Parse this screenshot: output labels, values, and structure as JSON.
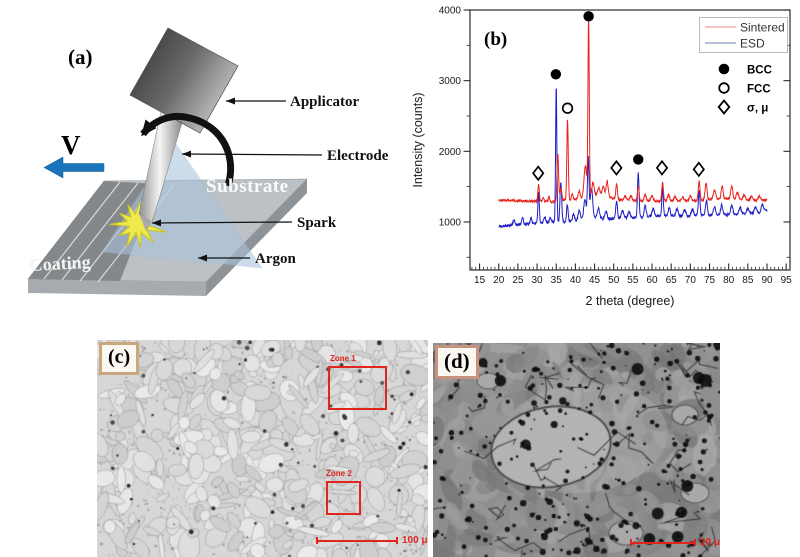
{
  "figure": {
    "panels": {
      "a": {
        "label": "(a)",
        "velocity_label": "V",
        "callouts": {
          "applicator": "Applicator",
          "electrode": "Electrode",
          "spark": "Spark",
          "argon": "Argon"
        },
        "surface_labels": {
          "substrate": "Substrate",
          "coating": "Coating"
        },
        "colors": {
          "velocity_arrow": "#1b75bc",
          "spark": "#efe94b",
          "argon_cone": "#aac4dd",
          "plate_top": "#bcc1c5",
          "coating_band": "#84888b"
        }
      },
      "b": {
        "label": "(b)"
      },
      "c": {
        "label": "(c)",
        "zone1_label": "Zone 1",
        "zone2_label": "Zone 2",
        "scalebar_text": "100 μm",
        "overlay_color": "#e0251f"
      },
      "d": {
        "label": "(d)",
        "scalebar_text": "20 μm",
        "overlay_color": "#e0251f"
      }
    }
  },
  "chart_data": {
    "type": "line",
    "title": "",
    "xlabel": "2 theta (degree)",
    "ylabel": "Intensity (counts)",
    "xlim": [
      12.5,
      96
    ],
    "ylim": [
      320,
      4000
    ],
    "x_major_ticks": [
      15,
      20,
      25,
      30,
      35,
      40,
      45,
      50,
      55,
      60,
      65,
      70,
      75,
      80,
      85,
      90,
      95
    ],
    "x_minor_step": 1,
    "y_major_ticks": [
      1000,
      2000,
      3000,
      4000
    ],
    "y_minor_step": 500,
    "grid": false,
    "legend_position": "top-right",
    "legend": [
      {
        "label": "Sintered",
        "line_color": "#f0b2ad",
        "series_color": "#e8231c"
      },
      {
        "label": "ESD",
        "line_color": "#9fadcb",
        "series_color": "#1e1ec8"
      }
    ],
    "phase_legend": [
      {
        "symbol": "filled-circle",
        "label": "BCC"
      },
      {
        "symbol": "open-circle",
        "label": "FCC"
      },
      {
        "symbol": "diamond",
        "label": "σ, μ"
      }
    ],
    "phase_markers": [
      {
        "symbol": "filled-circle",
        "x": 34.9,
        "y": 3090
      },
      {
        "symbol": "filled-circle",
        "x": 43.45,
        "y": 3910
      },
      {
        "symbol": "filled-circle",
        "x": 56.4,
        "y": 1885
      },
      {
        "symbol": "open-circle",
        "x": 37.95,
        "y": 2610
      },
      {
        "symbol": "diamond",
        "x": 30.3,
        "y": 1690
      },
      {
        "symbol": "diamond",
        "x": 50.7,
        "y": 1765
      },
      {
        "symbol": "diamond",
        "x": 62.6,
        "y": 1765
      },
      {
        "symbol": "diamond",
        "x": 72.2,
        "y": 1745
      }
    ],
    "series": [
      {
        "name": "Sintered",
        "color": "#e8231c",
        "noise": 16,
        "baseline": [
          [
            20,
            1310
          ],
          [
            28,
            1295
          ],
          [
            34,
            1285
          ],
          [
            40,
            1320
          ],
          [
            43,
            1335
          ],
          [
            44,
            1370
          ],
          [
            47,
            1380
          ],
          [
            49,
            1340
          ],
          [
            52,
            1310
          ],
          [
            56,
            1300
          ],
          [
            60,
            1295
          ],
          [
            64,
            1300
          ],
          [
            68,
            1295
          ],
          [
            72,
            1305
          ],
          [
            76,
            1320
          ],
          [
            80,
            1330
          ],
          [
            84,
            1310
          ],
          [
            88,
            1300
          ],
          [
            90,
            1310
          ]
        ],
        "peaks": [
          [
            30.4,
            250,
            0.18
          ],
          [
            31.6,
            60,
            0.2
          ],
          [
            33.1,
            70,
            0.18
          ],
          [
            35.4,
            690,
            0.2
          ],
          [
            36.2,
            180,
            0.25
          ],
          [
            37.95,
            1150,
            0.18
          ],
          [
            39.2,
            90,
            0.2
          ],
          [
            41.0,
            110,
            0.25
          ],
          [
            42.6,
            470,
            0.35
          ],
          [
            43.45,
            2540,
            0.17
          ],
          [
            44.6,
            190,
            0.3
          ],
          [
            46.1,
            110,
            0.3
          ],
          [
            47.3,
            130,
            0.3
          ],
          [
            48.3,
            230,
            0.25
          ],
          [
            50.75,
            230,
            0.2
          ],
          [
            53.0,
            60,
            0.3
          ],
          [
            54.5,
            70,
            0.3
          ],
          [
            56.4,
            200,
            0.22
          ],
          [
            58.2,
            90,
            0.25
          ],
          [
            60.0,
            70,
            0.3
          ],
          [
            62.75,
            260,
            0.2
          ],
          [
            64.3,
            90,
            0.25
          ],
          [
            66.0,
            60,
            0.3
          ],
          [
            68.0,
            60,
            0.3
          ],
          [
            70.0,
            70,
            0.3
          ],
          [
            72.3,
            280,
            0.22
          ],
          [
            74.1,
            240,
            0.25
          ],
          [
            76.3,
            130,
            0.3
          ],
          [
            78.3,
            190,
            0.25
          ],
          [
            80.8,
            190,
            0.25
          ],
          [
            82.3,
            100,
            0.3
          ],
          [
            84.0,
            70,
            0.3
          ],
          [
            86.0,
            60,
            0.3
          ],
          [
            88.0,
            70,
            0.3
          ]
        ]
      },
      {
        "name": "ESD",
        "color": "#1e1ec8",
        "noise": 17,
        "baseline": [
          [
            20,
            935
          ],
          [
            24,
            955
          ],
          [
            28,
            975
          ],
          [
            32,
            990
          ],
          [
            36,
            1000
          ],
          [
            40,
            1015
          ],
          [
            44,
            1070
          ],
          [
            48,
            1040
          ],
          [
            52,
            1050
          ],
          [
            56,
            1065
          ],
          [
            60,
            1080
          ],
          [
            64,
            1085
          ],
          [
            68,
            1085
          ],
          [
            72,
            1090
          ],
          [
            76,
            1095
          ],
          [
            80,
            1105
          ],
          [
            84,
            1115
          ],
          [
            88,
            1130
          ],
          [
            90,
            1165
          ]
        ],
        "peaks": [
          [
            24.0,
            60,
            0.3
          ],
          [
            26.2,
            110,
            0.2
          ],
          [
            28.4,
            90,
            0.2
          ],
          [
            30.4,
            440,
            0.18
          ],
          [
            32.0,
            80,
            0.25
          ],
          [
            33.5,
            70,
            0.25
          ],
          [
            35.0,
            1945,
            0.16
          ],
          [
            36.2,
            560,
            0.22
          ],
          [
            37.9,
            240,
            0.2
          ],
          [
            39.5,
            100,
            0.25
          ],
          [
            41.0,
            130,
            0.3
          ],
          [
            42.5,
            280,
            0.3
          ],
          [
            43.35,
            860,
            0.2
          ],
          [
            44.2,
            420,
            0.3
          ],
          [
            46.0,
            140,
            0.3
          ],
          [
            48.0,
            110,
            0.3
          ],
          [
            50.75,
            250,
            0.22
          ],
          [
            52.3,
            110,
            0.3
          ],
          [
            54.0,
            90,
            0.3
          ],
          [
            56.4,
            630,
            0.2
          ],
          [
            58.2,
            170,
            0.25
          ],
          [
            60.3,
            110,
            0.3
          ],
          [
            62.75,
            400,
            0.2
          ],
          [
            64.5,
            130,
            0.25
          ],
          [
            66.5,
            100,
            0.3
          ],
          [
            68.5,
            90,
            0.3
          ],
          [
            70.5,
            90,
            0.3
          ],
          [
            72.3,
            350,
            0.22
          ],
          [
            74.2,
            210,
            0.25
          ],
          [
            76.3,
            120,
            0.3
          ],
          [
            78.2,
            140,
            0.28
          ],
          [
            80.8,
            130,
            0.28
          ],
          [
            83.0,
            90,
            0.3
          ],
          [
            85.0,
            70,
            0.3
          ],
          [
            87.0,
            80,
            0.3
          ],
          [
            88.8,
            110,
            0.3
          ]
        ]
      }
    ]
  }
}
